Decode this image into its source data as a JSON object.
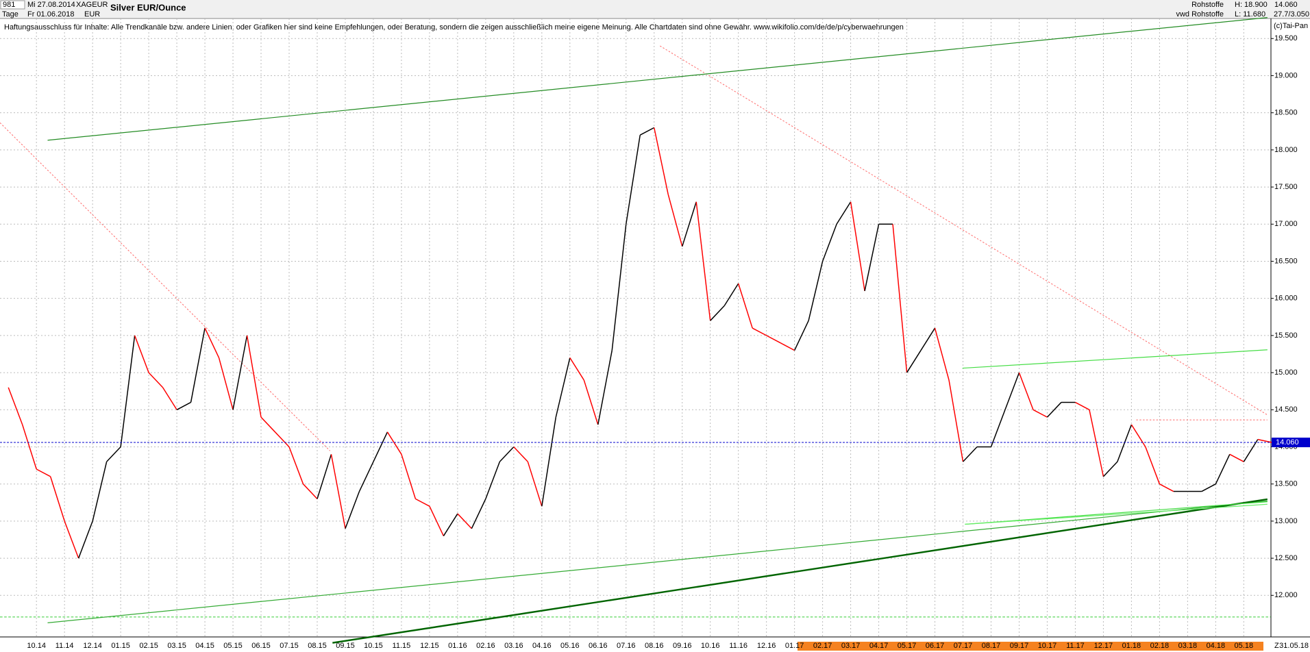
{
  "toolbar": {
    "bars": "981",
    "unit": "Tage",
    "from": "Mi 27.08.2014",
    "to": "Fr 01.06.2018",
    "symbol": "XAGEUR",
    "currency": "EUR",
    "group": "Rohstoffe",
    "source": "vwd Rohstoffe",
    "high": "H: 18.900",
    "low": "L: 11.680",
    "scale": "27.7/3.050",
    "copyright": "(c)Tai-Pan"
  },
  "disclaimer": "Haftungsausschluss für Inhalte: Alle Trendkanäle bzw. andere Linien, oder Grafiken hier sind keine Empfehlungen, oder Beratung, sondern die zeigen ausschließlich meine eigene Meinung. Alle Chartdaten sind ohne Gewähr.  www.wikifolio.com/de/de/p/cyberwaehrungen",
  "footer": {
    "marker": "Z",
    "date": "31.05.18"
  },
  "chart_data": {
    "type": "line",
    "title": "Silver EUR/Ounce",
    "categories": [
      null,
      null,
      "10.14",
      null,
      "11.14",
      null,
      "12.14",
      null,
      "01.15",
      null,
      "02.15",
      null,
      "03.15",
      null,
      "04.15",
      null,
      "05.15",
      null,
      "06.15",
      null,
      "07.15",
      null,
      "08.15",
      null,
      "09.15",
      null,
      "10.15",
      null,
      "11.15",
      null,
      "12.15",
      null,
      "01.16",
      null,
      "02.16",
      null,
      "03.16",
      null,
      "04.16",
      null,
      "05.16",
      null,
      "06.16",
      null,
      "07.16",
      null,
      "08.16",
      null,
      "09.16",
      null,
      "10.16",
      null,
      "11.16",
      null,
      "12.16",
      null,
      "01.17",
      null,
      "02.17",
      null,
      "03.17",
      null,
      "04.17",
      null,
      "05.17",
      null,
      "06.17",
      null,
      "07.17",
      null,
      "08.17",
      null,
      "09.17",
      null,
      "10.17",
      null,
      "11.17",
      null,
      "12.17",
      null,
      "01.18",
      null,
      "02.18",
      null,
      "03.18",
      null,
      "04.18",
      null,
      "05.18",
      null,
      null
    ],
    "values": [
      14.8,
      14.3,
      13.7,
      13.6,
      13.0,
      12.5,
      13.0,
      13.8,
      14.0,
      15.5,
      15.0,
      14.8,
      14.5,
      14.6,
      15.6,
      15.2,
      14.5,
      15.5,
      14.4,
      14.2,
      14.0,
      13.5,
      13.3,
      13.9,
      12.9,
      13.4,
      13.8,
      14.2,
      13.9,
      13.3,
      13.2,
      12.8,
      13.1,
      12.9,
      13.3,
      13.8,
      14.0,
      13.8,
      13.2,
      14.4,
      15.2,
      14.9,
      14.3,
      15.3,
      17.0,
      18.2,
      18.3,
      17.4,
      16.7,
      17.3,
      15.7,
      15.9,
      16.2,
      15.6,
      15.5,
      15.4,
      15.3,
      15.7,
      16.5,
      17.0,
      17.3,
      16.1,
      17.0,
      17.0,
      15.0,
      15.3,
      15.6,
      14.9,
      13.8,
      14.0,
      14.0,
      14.5,
      15.0,
      14.5,
      14.4,
      14.6,
      14.6,
      14.5,
      13.6,
      13.8,
      14.3,
      14.0,
      13.5,
      13.4,
      13.4,
      13.4,
      13.5,
      13.9,
      13.8,
      14.1,
      14.06
    ],
    "up_color": "#000000",
    "down_color": "#ff0000",
    "last_price": {
      "value": 14.06,
      "label": "14.060"
    },
    "last_price_color": "#0000cc",
    "ylim": [
      11.44,
      19.77
    ],
    "yticks": [
      {
        "value": 12,
        "label": "12.000"
      },
      {
        "value": 12.5,
        "label": "12.500"
      },
      {
        "value": 13,
        "label": "13.000"
      },
      {
        "value": 13.5,
        "label": "13.500"
      },
      {
        "value": 14,
        "label": "14.000"
      },
      {
        "value": 14.5,
        "label": "14.500"
      },
      {
        "value": 15,
        "label": "15.000"
      },
      {
        "value": 15.5,
        "label": "15.500"
      },
      {
        "value": 16,
        "label": "16.000"
      },
      {
        "value": 16.5,
        "label": "16.500"
      },
      {
        "value": 17,
        "label": "17.000"
      },
      {
        "value": 17.5,
        "label": "17.500"
      },
      {
        "value": 18,
        "label": "18.000"
      },
      {
        "value": 18.5,
        "label": "18.500"
      },
      {
        "value": 19,
        "label": "19.000"
      },
      {
        "value": 19.5,
        "label": "19.500"
      }
    ],
    "grid": true
  }
}
